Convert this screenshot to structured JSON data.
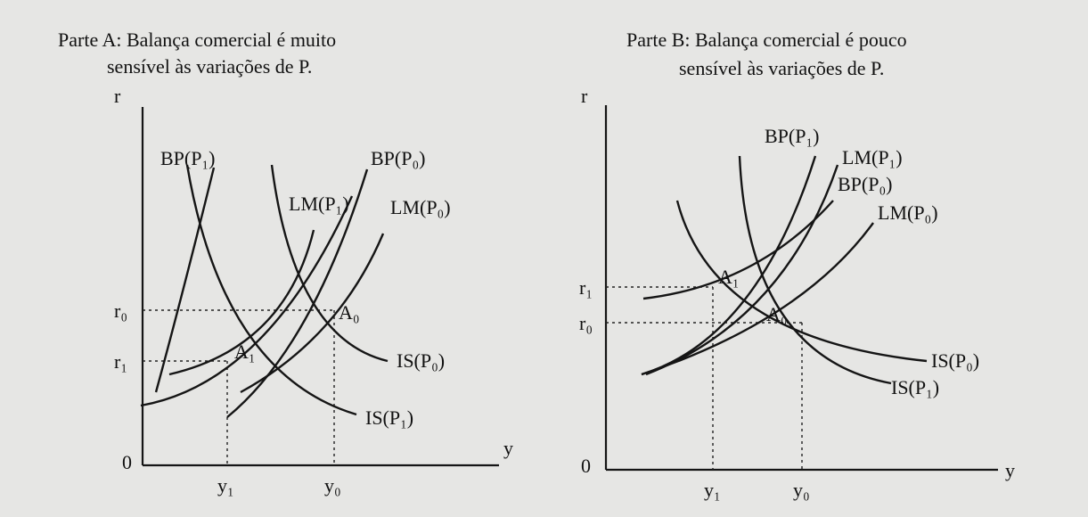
{
  "parts": [
    {
      "title": [
        "Parte A: Balança comercial é muito",
        "sensível às variações de P."
      ],
      "axes": {
        "vertical": "r",
        "horizontal": "y",
        "origin": "0"
      },
      "ticks": {
        "r0": "r₀",
        "r1": "r₁",
        "y0": "y₀",
        "y1": "y₁"
      },
      "points": {
        "A0": "A₀",
        "A1": "A₁"
      },
      "curves": [
        "BP(P₁)",
        "BP(P₀)",
        "LM(P₁)",
        "LM(P₀)",
        "IS(P₀)",
        "IS(P₁)"
      ]
    },
    {
      "title": [
        "Parte B:  Balança comercial é pouco",
        "sensível às variações de P."
      ],
      "axes": {
        "vertical": "r",
        "horizontal": "y",
        "origin": "0"
      },
      "ticks": {
        "r0": "r₀",
        "r1": "r₁",
        "y0": "y₀",
        "y1": "y₁"
      },
      "points": {
        "A0": "A₀",
        "A1": "A₁"
      },
      "curves": [
        "BP(P₁)",
        "LM(P₁)",
        "BP(P₀)",
        "LM(P₀)",
        "IS(P₀)",
        "IS(P₁)"
      ]
    }
  ]
}
